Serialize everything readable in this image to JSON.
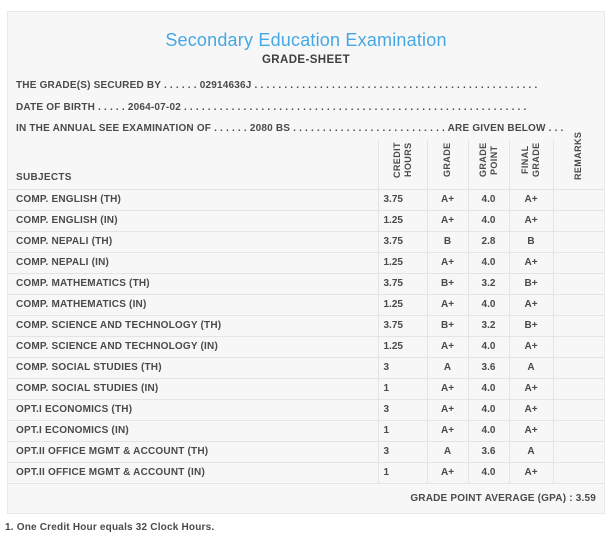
{
  "header": {
    "title": "Secondary Education Examination",
    "subtitle": "GRADE-SHEET",
    "secured_by_line": "THE GRADE(S) SECURED BY . . . . . . 02914636J . . . . . . . . . . . . . . . . . . . . . . . . . . . . . . . . . . . . . . . . . . . . . . . .",
    "date_of_birth_line": "DATE OF BIRTH . . . . . 2064-07-02 . . . . . . . . . . . . . . . . . . . . . . . . . . . . . . . . . . . . . . . . . . . . . . . . . . . . . . . . . .",
    "examination_line": "IN THE ANNUAL SEE EXAMINATION OF . . . . . . 2080 BS . . . . . . . . . . . . . . . . . . . . . . . . . . ARE GIVEN BELOW . . ."
  },
  "table": {
    "columns": [
      "SUBJECTS",
      "CREDIT HOURS",
      "GRADE",
      "GRADE POINT",
      "FINAL GRADE",
      "REMARKS"
    ],
    "rows": [
      {
        "subject": "COMP. ENGLISH (TH)",
        "credit_hours": "3.75",
        "grade": "A+",
        "grade_point": "4.0",
        "final_grade": "A+",
        "remarks": ""
      },
      {
        "subject": "COMP. ENGLISH (IN)",
        "credit_hours": "1.25",
        "grade": "A+",
        "grade_point": "4.0",
        "final_grade": "A+",
        "remarks": ""
      },
      {
        "subject": "COMP. NEPALI (TH)",
        "credit_hours": "3.75",
        "grade": "B",
        "grade_point": "2.8",
        "final_grade": "B",
        "remarks": ""
      },
      {
        "subject": "COMP. NEPALI (IN)",
        "credit_hours": "1.25",
        "grade": "A+",
        "grade_point": "4.0",
        "final_grade": "A+",
        "remarks": ""
      },
      {
        "subject": "COMP. MATHEMATICS (TH)",
        "credit_hours": "3.75",
        "grade": "B+",
        "grade_point": "3.2",
        "final_grade": "B+",
        "remarks": ""
      },
      {
        "subject": "COMP. MATHEMATICS (IN)",
        "credit_hours": "1.25",
        "grade": "A+",
        "grade_point": "4.0",
        "final_grade": "A+",
        "remarks": ""
      },
      {
        "subject": "COMP. SCIENCE AND TECHNOLOGY (TH)",
        "credit_hours": "3.75",
        "grade": "B+",
        "grade_point": "3.2",
        "final_grade": "B+",
        "remarks": ""
      },
      {
        "subject": "COMP. SCIENCE AND TECHNOLOGY (IN)",
        "credit_hours": "1.25",
        "grade": "A+",
        "grade_point": "4.0",
        "final_grade": "A+",
        "remarks": ""
      },
      {
        "subject": "COMP. SOCIAL STUDIES (TH)",
        "credit_hours": "3",
        "grade": "A",
        "grade_point": "3.6",
        "final_grade": "A",
        "remarks": ""
      },
      {
        "subject": "COMP. SOCIAL STUDIES (IN)",
        "credit_hours": "1",
        "grade": "A+",
        "grade_point": "4.0",
        "final_grade": "A+",
        "remarks": ""
      },
      {
        "subject": "OPT.I ECONOMICS (TH)",
        "credit_hours": "3",
        "grade": "A+",
        "grade_point": "4.0",
        "final_grade": "A+",
        "remarks": ""
      },
      {
        "subject": "OPT.I ECONOMICS (IN)",
        "credit_hours": "1",
        "grade": "A+",
        "grade_point": "4.0",
        "final_grade": "A+",
        "remarks": ""
      },
      {
        "subject": "OPT.II OFFICE MGMT & ACCOUNT (TH)",
        "credit_hours": "3",
        "grade": "A",
        "grade_point": "3.6",
        "final_grade": "A",
        "remarks": ""
      },
      {
        "subject": "OPT.II OFFICE MGMT & ACCOUNT (IN)",
        "credit_hours": "1",
        "grade": "A+",
        "grade_point": "4.0",
        "final_grade": "A+",
        "remarks": ""
      }
    ]
  },
  "summary": {
    "gpa_label": "GRADE POINT AVERAGE (GPA) : 3.59"
  },
  "footnote": {
    "text": "1. One Credit Hour equals 32 Clock Hours."
  },
  "colors": {
    "accent_blue": "#45a8e4",
    "text": "#4a4a4a",
    "panel_background": "#f7f7f7",
    "border": "#e4e4e4"
  }
}
